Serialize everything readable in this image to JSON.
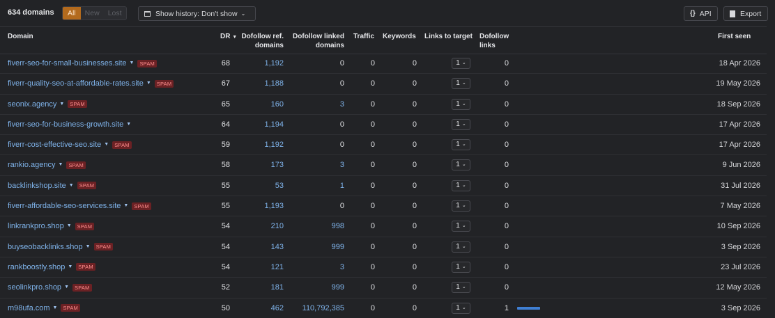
{
  "toolbar": {
    "count": "634 domains",
    "filters": [
      "All",
      "New",
      "Lost"
    ],
    "history_label": "Show history: Don't show",
    "api_icon": "{}",
    "api_label": "API",
    "export_label": "Export",
    "colors": {
      "active_filter": "#b36a1d",
      "link": "#7fb3ea",
      "spam": "#6b2124",
      "bar": "#3f7fd3"
    }
  },
  "columns": {
    "domain": "Domain",
    "dr": "DR",
    "ref_domains": [
      "Dofollow ref.",
      "domains"
    ],
    "linked_domains": [
      "Dofollow linked",
      "domains"
    ],
    "traffic": "Traffic",
    "keywords": "Keywords",
    "links_to_target": "Links to target",
    "dofollow_links": [
      "Dofollow",
      "links"
    ],
    "first_seen": "First seen"
  },
  "spam_label": "SPAM",
  "rows": [
    {
      "domain": "fiverr-seo-for-small-businesses.site",
      "spam": true,
      "dr": "68",
      "ref": "1,192",
      "linked": "0",
      "traffic": "0",
      "keywords": "0",
      "links": "1",
      "dofollow": "0",
      "bar": 0,
      "first_seen": "18 Apr 2026"
    },
    {
      "domain": "fiverr-quality-seo-at-affordable-rates.site",
      "spam": true,
      "dr": "67",
      "ref": "1,188",
      "linked": "0",
      "traffic": "0",
      "keywords": "0",
      "links": "1",
      "dofollow": "0",
      "bar": 0,
      "first_seen": "19 May 2026"
    },
    {
      "domain": "seonix.agency",
      "spam": true,
      "dr": "65",
      "ref": "160",
      "linked": "3",
      "traffic": "0",
      "keywords": "0",
      "links": "1",
      "dofollow": "0",
      "bar": 0,
      "first_seen": "18 Sep 2026"
    },
    {
      "domain": "fiverr-seo-for-business-growth.site",
      "spam": false,
      "dr": "64",
      "ref": "1,194",
      "linked": "0",
      "traffic": "0",
      "keywords": "0",
      "links": "1",
      "dofollow": "0",
      "bar": 0,
      "first_seen": "17 Apr 2026"
    },
    {
      "domain": "fiverr-cost-effective-seo.site",
      "spam": true,
      "dr": "59",
      "ref": "1,192",
      "linked": "0",
      "traffic": "0",
      "keywords": "0",
      "links": "1",
      "dofollow": "0",
      "bar": 0,
      "first_seen": "17 Apr 2026"
    },
    {
      "domain": "rankio.agency",
      "spam": true,
      "dr": "58",
      "ref": "173",
      "linked": "3",
      "traffic": "0",
      "keywords": "0",
      "links": "1",
      "dofollow": "0",
      "bar": 0,
      "first_seen": "9 Jun 2026"
    },
    {
      "domain": "backlinkshop.site",
      "spam": true,
      "dr": "55",
      "ref": "53",
      "linked": "1",
      "traffic": "0",
      "keywords": "0",
      "links": "1",
      "dofollow": "0",
      "bar": 0,
      "first_seen": "31 Jul 2026"
    },
    {
      "domain": "fiverr-affordable-seo-services.site",
      "spam": true,
      "dr": "55",
      "ref": "1,193",
      "linked": "0",
      "traffic": "0",
      "keywords": "0",
      "links": "1",
      "dofollow": "0",
      "bar": 0,
      "first_seen": "7 May 2026"
    },
    {
      "domain": "linkrankpro.shop",
      "spam": true,
      "dr": "54",
      "ref": "210",
      "linked": "998",
      "traffic": "0",
      "keywords": "0",
      "links": "1",
      "dofollow": "0",
      "bar": 0,
      "first_seen": "10 Sep 2026"
    },
    {
      "domain": "buyseobacklinks.shop",
      "spam": true,
      "dr": "54",
      "ref": "143",
      "linked": "999",
      "traffic": "0",
      "keywords": "0",
      "links": "1",
      "dofollow": "0",
      "bar": 0,
      "first_seen": "3 Sep 2026"
    },
    {
      "domain": "rankboostly.shop",
      "spam": true,
      "dr": "54",
      "ref": "121",
      "linked": "3",
      "traffic": "0",
      "keywords": "0",
      "links": "1",
      "dofollow": "0",
      "bar": 0,
      "first_seen": "23 Jul 2026"
    },
    {
      "domain": "seolinkpro.shop",
      "spam": true,
      "dr": "52",
      "ref": "181",
      "linked": "999",
      "traffic": "0",
      "keywords": "0",
      "links": "1",
      "dofollow": "0",
      "bar": 0,
      "first_seen": "12 May 2026"
    },
    {
      "domain": "m98ufa.com",
      "spam": true,
      "dr": "50",
      "ref": "462",
      "linked": "110,792,385",
      "traffic": "0",
      "keywords": "0",
      "links": "1",
      "dofollow": "1",
      "bar": 1,
      "first_seen": "3 Sep 2026"
    }
  ]
}
